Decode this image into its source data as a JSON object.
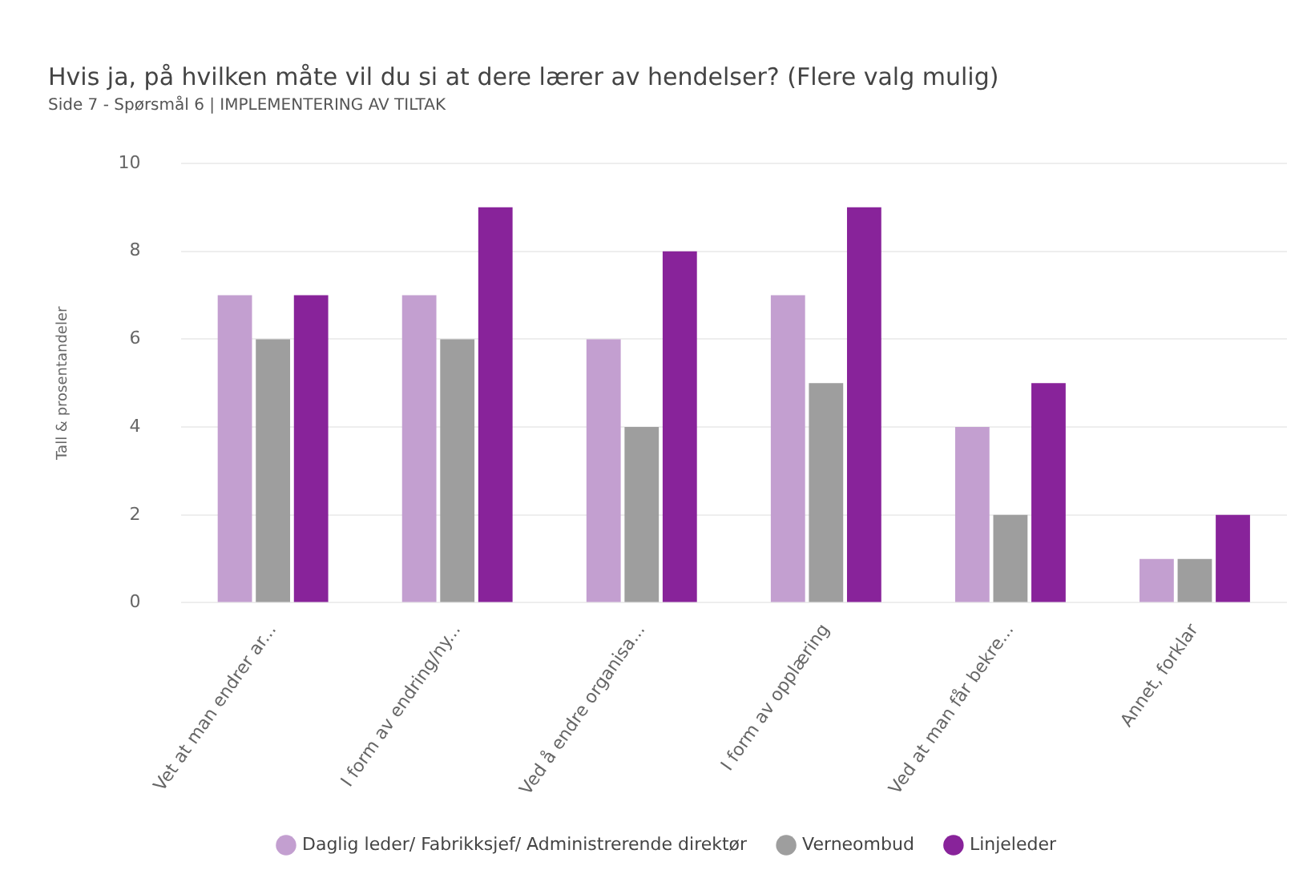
{
  "chart_data": {
    "type": "bar",
    "title": "Hvis ja, på hvilken måte vil du si at dere lærer av hendelser? (Flere valg mulig)",
    "subtitle": "Side 7 - Spørsmål 6 | IMPLEMENTERING AV TILTAK",
    "ylabel": "Tall & prosentandeler",
    "categories": [
      "Vet at man endrer ar...",
      "I form av endring/ny...",
      "Ved å endre organisa...",
      "I form av opplæring",
      "Ved at man får bekre...",
      "Annet, forklar"
    ],
    "series": [
      {
        "name": "Daglig leder/ Fabrikksjef/ Administrerende direktør",
        "color": "#c39fd0",
        "values": [
          7,
          7,
          6,
          7,
          4,
          1
        ]
      },
      {
        "name": "Verneombud",
        "color": "#9e9e9e",
        "values": [
          6,
          6,
          4,
          5,
          2,
          1
        ]
      },
      {
        "name": "Linjeleder",
        "color": "#88239a",
        "values": [
          7,
          9,
          8,
          9,
          5,
          2
        ]
      }
    ],
    "ylim": [
      0,
      10
    ],
    "yticks": [
      0,
      2,
      4,
      6,
      8,
      10
    ],
    "grid": "y",
    "legend": "bottom"
  }
}
